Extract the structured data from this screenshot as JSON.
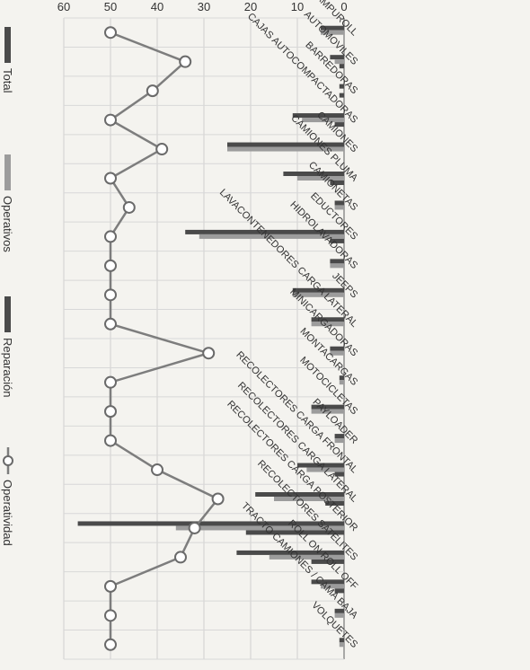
{
  "chart_data": {
    "type": "bar",
    "title": "",
    "xlabel": "",
    "ylabel": "",
    "ylim": [
      0,
      60
    ],
    "yticks": [
      0,
      10,
      20,
      30,
      40,
      50,
      60
    ],
    "grid": true,
    "legend_position": "top",
    "categories": [
      "AMPUROLL",
      "AUTOMOVILES",
      "BARREDORAS",
      "CAJAS AUTOCOMPACTADORAS",
      "CAMIONES",
      "CAMIONES PLUMA",
      "CAMIONETAS",
      "EDUCTORES",
      "HIDROLAVADORAS",
      "JEEPS",
      "LAVACONTENEDORES CARGA LATERAL",
      "MINICARGADORAS",
      "MONTACARGAS",
      "MOTOCICLETAS",
      "PAYLOADER",
      "RECOLECTORES CARGA FRONTAL",
      "RECOLECTORES CARGA LATERAL",
      "RECOLECTORES CARGA POSTERIOR",
      "RECOLECTORES SATELITES",
      "ROLL ON ROLL OFF",
      "TRACTO CAMIONES / CAMA BAJA",
      "VOLQUETES"
    ],
    "series": [
      {
        "name": "Total",
        "type": "bar",
        "color": "#4a4a4a",
        "values": [
          5,
          3,
          1,
          11,
          25,
          13,
          2,
          34,
          3,
          11,
          7,
          3,
          1,
          7,
          2,
          10,
          19,
          57,
          23,
          7,
          2,
          1
        ]
      },
      {
        "name": "Operativos",
        "type": "bar",
        "color": "#9c9c9c",
        "values": [
          5,
          2,
          0,
          9,
          25,
          10,
          2,
          31,
          3,
          11,
          7,
          3,
          1,
          7,
          2,
          8,
          15,
          36,
          16,
          5,
          2,
          1
        ]
      },
      {
        "name": "Reparación",
        "type": "bar",
        "color": "#4a4a4a",
        "values": [
          0,
          1,
          1,
          2,
          0,
          3,
          0,
          3,
          0,
          0,
          0,
          0,
          0,
          0,
          0,
          2,
          4,
          21,
          7,
          2,
          0,
          0
        ]
      },
      {
        "name": "Operatividad",
        "type": "line",
        "color": "#7d7d7d",
        "values": [
          50,
          34,
          41,
          50,
          39,
          50,
          46,
          50,
          50,
          50,
          50,
          29,
          50,
          50,
          50,
          40,
          27,
          32,
          35,
          50,
          50,
          50
        ]
      }
    ]
  }
}
